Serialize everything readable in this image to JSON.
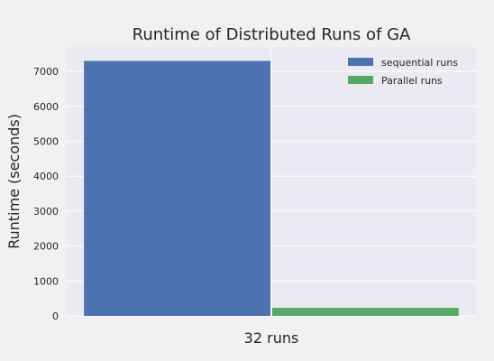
{
  "chart_data": {
    "type": "bar",
    "title": "Runtime of Distributed Runs of GA",
    "xlabel": "32 runs",
    "ylabel": "Runtime (seconds)",
    "categories": [
      "32 runs"
    ],
    "series": [
      {
        "name": "sequential runs",
        "values": [
          7300
        ],
        "color": "#4c72b0"
      },
      {
        "name": "Parallel runs",
        "values": [
          230
        ],
        "color": "#55a868"
      }
    ],
    "ylim": [
      0,
      7700
    ],
    "yticks": [
      0,
      1000,
      2000,
      3000,
      4000,
      5000,
      6000,
      7000
    ],
    "grid": true,
    "legend_position": "top-right",
    "plot_background": "#eaeaf2"
  }
}
